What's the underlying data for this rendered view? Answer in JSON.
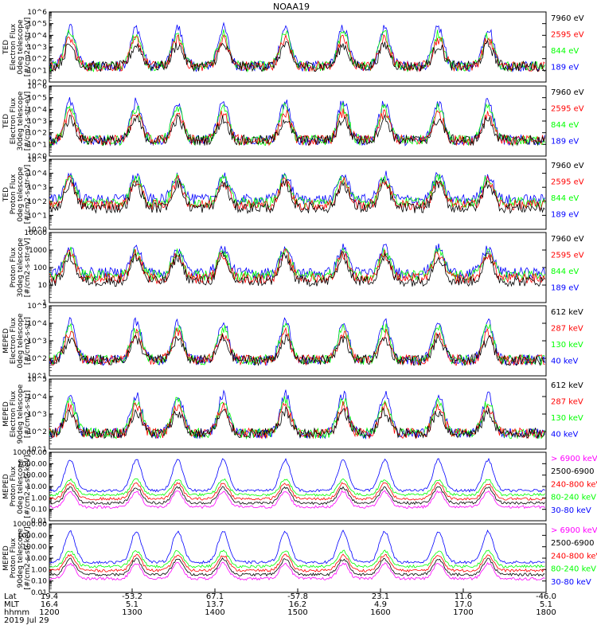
{
  "title": "NOAA19",
  "date_label": "2019 Jul 29",
  "colors": {
    "black": "#000000",
    "red": "#ff0000",
    "green": "#00ff00",
    "blue": "#0000ff",
    "magenta": "#ff00ff"
  },
  "chart_data": [
    {
      "type": "scatter",
      "name": "ted-electron-0deg",
      "ylabel_lines": [
        "TED",
        "Electron Flux",
        "0deg telescope",
        "[#/cm2-s-str-eV]"
      ],
      "ytick_labels": [
        "10^0",
        "10^1",
        "10^2",
        "10^3",
        "10^4",
        "10^5",
        "10^6"
      ],
      "ylim": [
        1,
        1000000
      ],
      "scale": "log",
      "legend": [
        {
          "text": "7960 eV",
          "color": "black"
        },
        {
          "text": "2595 eV",
          "color": "red"
        },
        {
          "text": "844 eV",
          "color": "green"
        },
        {
          "text": "189 eV",
          "color": "blue"
        }
      ]
    },
    {
      "type": "scatter",
      "name": "ted-electron-30deg",
      "ylabel_lines": [
        "TED",
        "Electron Flux",
        "30deg telescope",
        "[#/cm2-s-str-eV]"
      ],
      "ytick_labels": [
        "10^0",
        "10^1",
        "10^2",
        "10^3",
        "10^4",
        "10^5",
        "10^6"
      ],
      "ylim": [
        1,
        1000000
      ],
      "scale": "log",
      "legend": [
        {
          "text": "7960 eV",
          "color": "black"
        },
        {
          "text": "2595 eV",
          "color": "red"
        },
        {
          "text": "844 eV",
          "color": "green"
        },
        {
          "text": "189 eV",
          "color": "blue"
        }
      ]
    },
    {
      "type": "scatter",
      "name": "ted-proton-0deg",
      "ylabel_lines": [
        "TED",
        "Proton Flux",
        "0deg telescope",
        "[#/cm2-s-str-eV]"
      ],
      "ytick_labels": [
        "10^0",
        "10^1",
        "10^2",
        "10^3",
        "10^4",
        "10^5"
      ],
      "ylim": [
        1,
        100000
      ],
      "scale": "log",
      "legend": [
        {
          "text": "7960 eV",
          "color": "black"
        },
        {
          "text": "2595 eV",
          "color": "red"
        },
        {
          "text": "844 eV",
          "color": "green"
        },
        {
          "text": "189 eV",
          "color": "blue"
        }
      ]
    },
    {
      "type": "scatter",
      "name": "ted-proton-30deg",
      "ylabel_lines": [
        "Proton Flux",
        "30deg telescope",
        "[#/cm2-s-str-eV]"
      ],
      "ytick_labels": [
        "1",
        "10",
        "100",
        "1000",
        "10000"
      ],
      "ylim": [
        1,
        10000
      ],
      "scale": "log",
      "legend": [
        {
          "text": "7960 eV",
          "color": "black"
        },
        {
          "text": "2595 eV",
          "color": "red"
        },
        {
          "text": "844 eV",
          "color": "green"
        },
        {
          "text": "189 eV",
          "color": "blue"
        }
      ]
    },
    {
      "type": "scatter",
      "name": "meped-electron-0deg",
      "ylabel_lines": [
        "MEPED",
        "Electron Flux",
        "0deg telescope",
        "[#/cm2-s-str]"
      ],
      "ytick_labels": [
        "10^1",
        "10^2",
        "10^3",
        "10^4",
        "10^5"
      ],
      "ylim": [
        10,
        100000
      ],
      "scale": "log",
      "legend": [
        {
          "text": "612 keV",
          "color": "black"
        },
        {
          "text": "287 keV",
          "color": "red"
        },
        {
          "text": "130 keV",
          "color": "green"
        },
        {
          "text": "40 keV",
          "color": "blue"
        }
      ]
    },
    {
      "type": "scatter",
      "name": "meped-electron-90deg",
      "ylabel_lines": [
        "MEPED",
        "Electron Flux",
        "90deg telescope",
        "[#/cm2-s-str]"
      ],
      "ytick_labels": [
        "10^1",
        "10^2",
        "10^3",
        "10^4",
        "10^5"
      ],
      "ylim": [
        10,
        100000
      ],
      "scale": "log",
      "legend": [
        {
          "text": "612 keV",
          "color": "black"
        },
        {
          "text": "287 keV",
          "color": "red"
        },
        {
          "text": "130 keV",
          "color": "green"
        },
        {
          "text": "40 keV",
          "color": "blue"
        }
      ]
    },
    {
      "type": "scatter",
      "name": "meped-proton-0deg",
      "ylabel_lines": [
        "MEPED",
        "Proton Flux",
        "0deg telescope",
        "[#/cm2-s-str-keV]"
      ],
      "ytick_labels": [
        "0.01",
        "0.10",
        "1.00",
        "10.00",
        "100.00",
        "1000.00",
        "10000.00"
      ],
      "ylim": [
        0.01,
        10000
      ],
      "scale": "log",
      "legend": [
        {
          "text": "> 6900 keV",
          "color": "magenta"
        },
        {
          "text": "2500-6900",
          "color": "black"
        },
        {
          "text": "240-800 keV",
          "color": "red"
        },
        {
          "text": "80-240 keV",
          "color": "green"
        },
        {
          "text": "30-80 keV",
          "color": "blue"
        }
      ]
    },
    {
      "type": "scatter",
      "name": "meped-proton-90deg",
      "ylabel_lines": [
        "MEPED",
        "Proton Flux",
        "90deg telescope",
        "[#/cm2-s-str-keV]"
      ],
      "ytick_labels": [
        "0.01",
        "0.10",
        "1.00",
        "10.00",
        "100.00",
        "1000.00",
        "10000.00"
      ],
      "ylim": [
        0.01,
        10000
      ],
      "scale": "log",
      "legend": [
        {
          "text": "> 6900 keV",
          "color": "magenta"
        },
        {
          "text": "2500-6900",
          "color": "black"
        },
        {
          "text": "240-800 keV",
          "color": "red"
        },
        {
          "text": "80-240 keV",
          "color": "green"
        },
        {
          "text": "30-80 keV",
          "color": "blue"
        }
      ]
    }
  ],
  "x_axis": {
    "row_labels": [
      "Lat",
      "MLT",
      "hhmm"
    ],
    "ticks": [
      {
        "lat": "19.4",
        "mlt": "16.4",
        "hhmm": "1200"
      },
      {
        "lat": "-53.2",
        "mlt": "5.1",
        "hhmm": "1300"
      },
      {
        "lat": "67.1",
        "mlt": "13.7",
        "hhmm": "1400"
      },
      {
        "lat": "-57.8",
        "mlt": "16.2",
        "hhmm": "1500"
      },
      {
        "lat": "23.1",
        "mlt": "4.9",
        "hhmm": "1600"
      },
      {
        "lat": "11.6",
        "mlt": "17.0",
        "hhmm": "1700"
      },
      {
        "lat": "-46.0",
        "mlt": "5.1",
        "hhmm": "1800"
      }
    ]
  }
}
